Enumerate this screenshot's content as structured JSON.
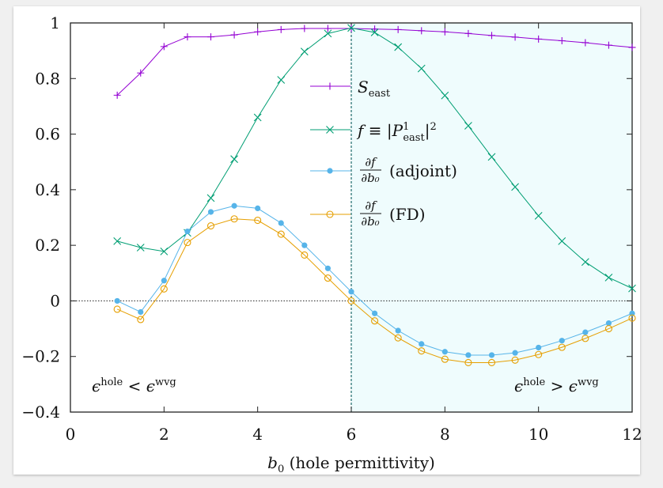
{
  "chart_data": {
    "type": "line",
    "xlabel_var": "b",
    "xlabel_sub": "0",
    "xlabel_text": " (hole permittivity)",
    "xlim": [
      0,
      12
    ],
    "ylim": [
      -0.4,
      1.0
    ],
    "x_ticks": [
      "0",
      "2",
      "4",
      "6",
      "8",
      "10",
      "12"
    ],
    "y_ticks": [
      "−0.4",
      "−0.2",
      "0",
      "0.2",
      "0.4",
      "0.6",
      "0.8",
      "1"
    ],
    "x_tick_values": [
      0,
      2,
      4,
      6,
      8,
      10,
      12
    ],
    "y_tick_values": [
      -0.4,
      -0.2,
      0,
      0.2,
      0.4,
      0.6,
      0.8,
      1.0
    ],
    "shaded_region_x": [
      6,
      12
    ],
    "vertical_line_x": 6,
    "zero_line_y": 0,
    "annotations": {
      "left_region": {
        "eps": "ϵ",
        "sup1": "hole",
        "rel": " < ",
        "sup2": "wvg"
      },
      "right_region": {
        "eps": "ϵ",
        "sup1": "hole",
        "rel": " > ",
        "sup2": "wvg"
      }
    },
    "series": [
      {
        "name": "S_east",
        "legend": {
          "main": "S",
          "sub": "east"
        },
        "color": "#9400d3",
        "marker": "plus",
        "x": [
          1,
          1.5,
          2,
          2.5,
          3,
          3.5,
          4,
          4.5,
          5,
          5.5,
          6,
          6.5,
          7,
          7.5,
          8,
          8.5,
          9,
          9.5,
          10,
          10.5,
          11,
          11.5,
          12
        ],
        "values": [
          0.74,
          0.82,
          0.915,
          0.95,
          0.95,
          0.957,
          0.968,
          0.976,
          0.98,
          0.98,
          0.98,
          0.978,
          0.976,
          0.972,
          0.968,
          0.962,
          0.955,
          0.949,
          0.942,
          0.936,
          0.929,
          0.92,
          0.912
        ]
      },
      {
        "name": "f = |P_east^1|^2",
        "legend": {
          "lhs": "f ≡ |P",
          "sup": "1",
          "sub": "east",
          "rhs": "|",
          "pow": "2"
        },
        "color": "#009e73",
        "marker": "cross",
        "x": [
          1,
          1.5,
          2,
          2.5,
          3,
          3.5,
          4,
          4.5,
          5,
          5.5,
          6,
          6.5,
          7,
          7.5,
          8,
          8.5,
          9,
          9.5,
          10,
          10.5,
          11,
          11.5,
          12
        ],
        "values": [
          0.215,
          0.192,
          0.178,
          0.245,
          0.37,
          0.51,
          0.66,
          0.795,
          0.897,
          0.962,
          0.982,
          0.966,
          0.913,
          0.836,
          0.739,
          0.63,
          0.518,
          0.41,
          0.306,
          0.215,
          0.14,
          0.084,
          0.045
        ]
      },
      {
        "name": "df/db0 (adjoint)",
        "legend": {
          "num": "∂f",
          "den": "∂b₀",
          "label": "(adjoint)"
        },
        "color": "#56b4e9",
        "marker": "filled-circle",
        "x": [
          1,
          1.5,
          2,
          2.5,
          3,
          3.5,
          4,
          4.5,
          5,
          5.5,
          6,
          6.5,
          7,
          7.5,
          8,
          8.5,
          9,
          9.5,
          10,
          10.5,
          11,
          11.5,
          12
        ],
        "values": [
          0.0,
          -0.04,
          0.073,
          0.25,
          0.32,
          0.342,
          0.333,
          0.28,
          0.2,
          0.117,
          0.033,
          -0.045,
          -0.107,
          -0.155,
          -0.183,
          -0.195,
          -0.195,
          -0.187,
          -0.168,
          -0.143,
          -0.113,
          -0.08,
          -0.045
        ]
      },
      {
        "name": "df/db0 (FD)",
        "legend": {
          "num": "∂f",
          "den": "∂b₀",
          "label": "(FD)"
        },
        "color": "#e69f00",
        "marker": "open-circle",
        "x": [
          1,
          1.5,
          2,
          2.5,
          3,
          3.5,
          4,
          4.5,
          5,
          5.5,
          6,
          6.5,
          7,
          7.5,
          8,
          8.5,
          9,
          9.5,
          10,
          10.5,
          11,
          11.5,
          12
        ],
        "values": [
          -0.03,
          -0.067,
          0.043,
          0.21,
          0.27,
          0.295,
          0.29,
          0.24,
          0.165,
          0.082,
          0.0,
          -0.072,
          -0.133,
          -0.18,
          -0.21,
          -0.222,
          -0.222,
          -0.213,
          -0.193,
          -0.167,
          -0.135,
          -0.1,
          -0.062
        ]
      }
    ]
  }
}
